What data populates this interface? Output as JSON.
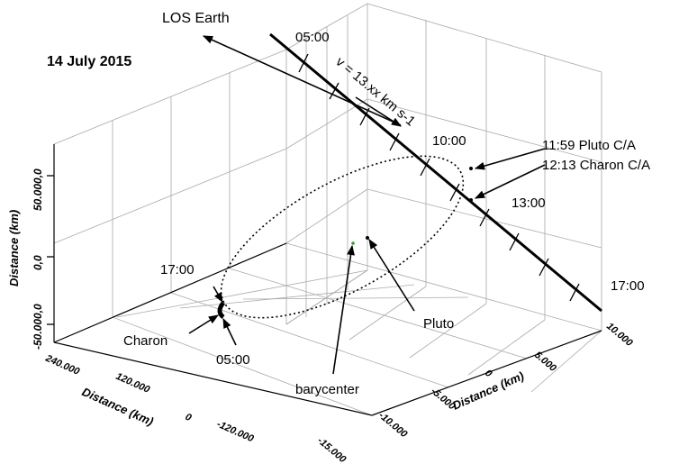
{
  "figure": {
    "date": "14 July 2015",
    "los_label": "LOS Earth",
    "velocity_label": "v = 13.xx km s-1",
    "z_axis_label": "Distance (km)",
    "x_axis_label": "Distance (km)",
    "y_axis_label": "Distance (km)",
    "z_ticks": [
      "50.000,0",
      "0,0",
      "-50.000,0"
    ],
    "x_ticks": [
      "240.000",
      "120.000",
      "0",
      "-120.000"
    ],
    "y_ticks": [
      "10.000",
      "5.000",
      "0",
      "-5.000",
      "-10.000",
      "-15.000"
    ],
    "time_labels": {
      "t0500_top": "05:00",
      "t1000": "10:00",
      "t1300": "13:00",
      "t1700_right": "17:00",
      "t1700_left": "17:00",
      "t0500_bottom": "05:00"
    },
    "annotations": {
      "pluto_ca": "11:59 Pluto C/A",
      "charon_ca": "12:13 Charon C/A",
      "charon": "Charon",
      "pluto": "Pluto",
      "barycenter": "barycenter"
    },
    "colors": {
      "grid": "#a9a9a9",
      "lines": "#000000",
      "barycenter_marker": "#2e9e2e"
    }
  }
}
